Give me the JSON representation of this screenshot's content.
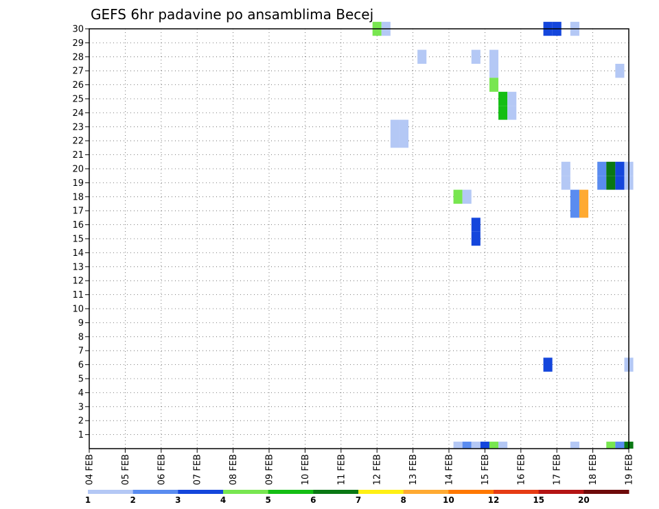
{
  "chart_data": {
    "type": "heatmap",
    "title": "GEFS 6hr padavine po ansamblima Becej",
    "y_ticks": [
      "1",
      "2",
      "3",
      "4",
      "5",
      "6",
      "7",
      "8",
      "9",
      "10",
      "11",
      "12",
      "13",
      "14",
      "15",
      "16",
      "17",
      "18",
      "19",
      "20",
      "21",
      "22",
      "23",
      "24",
      "25",
      "26",
      "27",
      "28",
      "29",
      "30"
    ],
    "x_ticks": [
      "04 FEB",
      "05 FEB",
      "06 FEB",
      "07 FEB",
      "08 FEB",
      "09 FEB",
      "10 FEB",
      "11 FEB",
      "12 FEB",
      "13 FEB",
      "14 FEB",
      "15 FEB",
      "16 FEB",
      "17 FEB",
      "18 FEB",
      "19 FEB"
    ],
    "x_range_days": [
      4,
      19
    ],
    "y_range": [
      0,
      30
    ],
    "grid": true,
    "colorbar": {
      "labels": [
        "1",
        "2",
        "3",
        "4",
        "5",
        "6",
        "7",
        "8",
        "10",
        "12",
        "15",
        "20"
      ],
      "colors": [
        "#b4c8f5",
        "#5a8cf0",
        "#1446dc",
        "#78e650",
        "#14be14",
        "#0a7814",
        "#fff014",
        "#ffaa32",
        "#ff7800",
        "#e63c14",
        "#b41414",
        "#6e0a0a"
      ]
    },
    "cells": [
      {
        "member": 30,
        "day": 11.875,
        "cls": 4
      },
      {
        "member": 30,
        "day": 12.125,
        "cls": 1
      },
      {
        "member": 30,
        "day": 16.625,
        "cls": 3
      },
      {
        "member": 30,
        "day": 16.875,
        "cls": 3
      },
      {
        "member": 30,
        "day": 17.375,
        "cls": 1
      },
      {
        "member": 28,
        "day": 13.125,
        "cls": 1
      },
      {
        "member": 28,
        "day": 14.625,
        "cls": 1
      },
      {
        "member": 28,
        "day": 15.125,
        "cls": 1
      },
      {
        "member": 27,
        "day": 15.125,
        "cls": 1
      },
      {
        "member": 27,
        "day": 18.625,
        "cls": 1
      },
      {
        "member": 26,
        "day": 15.125,
        "cls": 4
      },
      {
        "member": 25,
        "day": 15.375,
        "cls": 5
      },
      {
        "member": 25,
        "day": 15.625,
        "cls": 1
      },
      {
        "member": 24,
        "day": 15.375,
        "cls": 5
      },
      {
        "member": 24,
        "day": 15.625,
        "cls": 1
      },
      {
        "member": 23,
        "day": 12.375,
        "cls": 1
      },
      {
        "member": 23,
        "day": 12.625,
        "cls": 1
      },
      {
        "member": 22,
        "day": 12.375,
        "cls": 1
      },
      {
        "member": 22,
        "day": 12.625,
        "cls": 1
      },
      {
        "member": 20,
        "day": 17.125,
        "cls": 1
      },
      {
        "member": 20,
        "day": 18.125,
        "cls": 2
      },
      {
        "member": 20,
        "day": 18.375,
        "cls": 6
      },
      {
        "member": 20,
        "day": 18.625,
        "cls": 3
      },
      {
        "member": 20,
        "day": 18.875,
        "cls": 1
      },
      {
        "member": 19,
        "day": 17.125,
        "cls": 1
      },
      {
        "member": 19,
        "day": 18.125,
        "cls": 2
      },
      {
        "member": 19,
        "day": 18.375,
        "cls": 6
      },
      {
        "member": 19,
        "day": 18.625,
        "cls": 3
      },
      {
        "member": 19,
        "day": 18.875,
        "cls": 1
      },
      {
        "member": 18,
        "day": 14.125,
        "cls": 4
      },
      {
        "member": 18,
        "day": 14.375,
        "cls": 1
      },
      {
        "member": 18,
        "day": 17.375,
        "cls": 2
      },
      {
        "member": 18,
        "day": 17.625,
        "cls": 8
      },
      {
        "member": 17,
        "day": 17.375,
        "cls": 2
      },
      {
        "member": 17,
        "day": 17.625,
        "cls": 8
      },
      {
        "member": 16,
        "day": 14.625,
        "cls": 3
      },
      {
        "member": 15,
        "day": 14.625,
        "cls": 3
      },
      {
        "member": 6,
        "day": 16.625,
        "cls": 3
      },
      {
        "member": 6,
        "day": 18.875,
        "cls": 1
      },
      {
        "member": 0,
        "day": 14.125,
        "cls": 1
      },
      {
        "member": 0,
        "day": 14.375,
        "cls": 2
      },
      {
        "member": 0,
        "day": 14.625,
        "cls": 1
      },
      {
        "member": 0,
        "day": 14.875,
        "cls": 3
      },
      {
        "member": 0,
        "day": 15.125,
        "cls": 4
      },
      {
        "member": 0,
        "day": 15.375,
        "cls": 1
      },
      {
        "member": 0,
        "day": 17.375,
        "cls": 1
      },
      {
        "member": 0,
        "day": 18.375,
        "cls": 4
      },
      {
        "member": 0,
        "day": 18.625,
        "cls": 2
      },
      {
        "member": 0,
        "day": 18.875,
        "cls": 6
      }
    ]
  }
}
